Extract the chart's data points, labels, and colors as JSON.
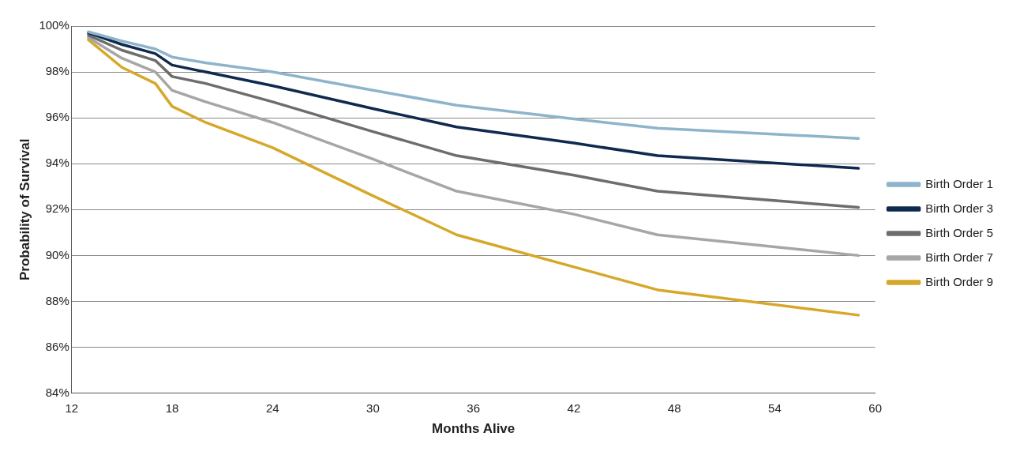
{
  "chart_data": {
    "type": "line",
    "xlabel": "Months Alive",
    "ylabel": "Probability of Survival",
    "x": [
      13,
      15,
      17,
      18,
      20,
      24,
      30,
      35,
      42,
      47,
      59
    ],
    "series": [
      {
        "name": "Birth Order 1",
        "color": "#8eb4cc",
        "values": [
          99.75,
          99.35,
          99.0,
          98.65,
          98.4,
          98.0,
          97.2,
          96.55,
          95.95,
          95.55,
          95.1
        ]
      },
      {
        "name": "Birth Order 3",
        "color": "#10294f",
        "values": [
          99.7,
          99.2,
          98.8,
          98.3,
          98.0,
          97.4,
          96.4,
          95.6,
          94.9,
          94.35,
          93.8
        ]
      },
      {
        "name": "Birth Order 5",
        "color": "#6d6d6d",
        "values": [
          99.6,
          98.95,
          98.5,
          97.8,
          97.5,
          96.7,
          95.4,
          94.35,
          93.5,
          92.8,
          92.1
        ]
      },
      {
        "name": "Birth Order 7",
        "color": "#a6a6a6",
        "values": [
          99.5,
          98.6,
          98.0,
          97.2,
          96.7,
          95.8,
          94.2,
          92.8,
          91.8,
          90.9,
          90.0
        ]
      },
      {
        "name": "Birth Order 9",
        "color": "#d6a82a",
        "values": [
          99.4,
          98.2,
          97.5,
          96.5,
          95.8,
          94.7,
          92.6,
          90.9,
          89.5,
          88.5,
          87.4
        ]
      }
    ],
    "xlim": [
      12,
      60
    ],
    "xticks": [
      12,
      18,
      24,
      30,
      36,
      42,
      48,
      54,
      60
    ],
    "ylim": [
      84,
      100
    ],
    "yticks": [
      {
        "value": 84,
        "label": "84%"
      },
      {
        "value": 86,
        "label": "86%"
      },
      {
        "value": 88,
        "label": "88%"
      },
      {
        "value": 90,
        "label": "90%"
      },
      {
        "value": 92,
        "label": "92%"
      },
      {
        "value": 94,
        "label": "94%"
      },
      {
        "value": 96,
        "label": "96%"
      },
      {
        "value": 98,
        "label": "98%"
      },
      {
        "value": 100,
        "label": "100%"
      }
    ],
    "grid": "y",
    "legend": "right",
    "marker": "none",
    "line_style": "solid"
  }
}
